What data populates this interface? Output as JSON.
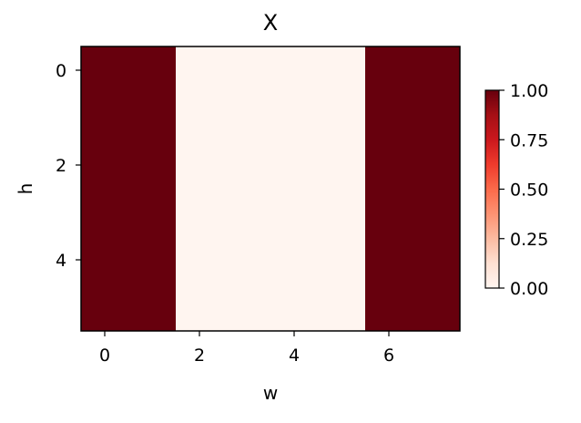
{
  "chart_data": {
    "type": "heatmap",
    "title": "X",
    "xlabel": "w",
    "ylabel": "h",
    "columns": 8,
    "rows": 6,
    "values": [
      [
        1,
        1,
        0,
        0,
        0,
        0,
        1,
        1
      ],
      [
        1,
        1,
        0,
        0,
        0,
        0,
        1,
        1
      ],
      [
        1,
        1,
        0,
        0,
        0,
        0,
        1,
        1
      ],
      [
        1,
        1,
        0,
        0,
        0,
        0,
        1,
        1
      ],
      [
        1,
        1,
        0,
        0,
        0,
        0,
        1,
        1
      ],
      [
        1,
        1,
        0,
        0,
        0,
        0,
        1,
        1
      ]
    ],
    "xticks": [
      0,
      2,
      4,
      6
    ],
    "yticks": [
      0,
      2,
      4
    ],
    "colorbar": {
      "min": 0,
      "max": 1,
      "ticks": [
        "0.00",
        "0.25",
        "0.50",
        "0.75",
        "1.00"
      ],
      "colormap": "Reds"
    },
    "colors": {
      "low": "#fff5f0",
      "high": "#67000d"
    }
  }
}
